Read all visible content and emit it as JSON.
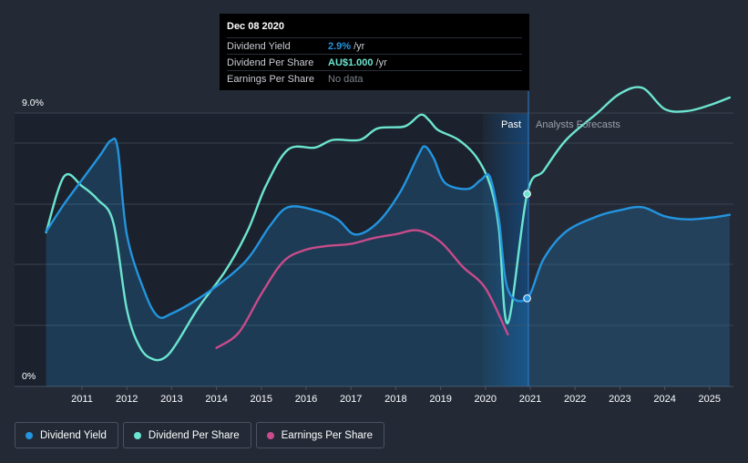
{
  "tooltip": {
    "date": "Dec 08 2020",
    "rows": [
      {
        "label": "Dividend Yield",
        "value": "2.9%",
        "unit": "/yr",
        "color": "#2394df"
      },
      {
        "label": "Dividend Per Share",
        "value": "AU$1.000",
        "unit": "/yr",
        "color": "#6ce5d0"
      },
      {
        "label": "Earnings Per Share",
        "value": "No data",
        "unit": "",
        "color": ""
      }
    ]
  },
  "regions": {
    "past": "Past",
    "forecast": "Analysts Forecasts"
  },
  "legend": [
    {
      "label": "Dividend Yield",
      "color": "#2394df"
    },
    {
      "label": "Dividend Per Share",
      "color": "#6ce5d0"
    },
    {
      "label": "Earnings Per Share",
      "color": "#c94b8b"
    }
  ],
  "chart_data": {
    "type": "line",
    "ylim": [
      0,
      9
    ],
    "yticks": [
      "0%",
      "9.0%"
    ],
    "xticks": [
      "2011",
      "2012",
      "2013",
      "2014",
      "2015",
      "2016",
      "2017",
      "2018",
      "2019",
      "2020",
      "2021",
      "2022",
      "2023",
      "2024",
      "2025"
    ],
    "past_end": 2020.93,
    "series": [
      {
        "name": "Dividend Yield",
        "color": "#2394df",
        "unit": "%",
        "x": [
          2010.2,
          2010.6,
          2011.0,
          2011.4,
          2011.65,
          2011.8,
          2012.0,
          2012.4,
          2012.7,
          2013.0,
          2013.5,
          2014.0,
          2014.5,
          2014.8,
          2015.2,
          2015.6,
          2016.2,
          2016.7,
          2017.1,
          2017.6,
          2018.1,
          2018.5,
          2018.65,
          2018.85,
          2019.1,
          2019.6,
          2019.9,
          2020.1,
          2020.3,
          2020.5,
          2020.93,
          2021.3,
          2021.8,
          2022.5,
          2023.0,
          2023.5,
          2024.0,
          2024.5,
          2025.0,
          2025.45
        ],
        "values": [
          5.1,
          6.0,
          6.8,
          7.6,
          8.1,
          7.8,
          5.0,
          3.1,
          2.3,
          2.4,
          2.8,
          3.3,
          3.9,
          4.4,
          5.3,
          5.9,
          5.8,
          5.5,
          5.0,
          5.4,
          6.4,
          7.6,
          7.9,
          7.5,
          6.7,
          6.5,
          6.8,
          6.9,
          5.5,
          3.2,
          2.9,
          4.2,
          5.1,
          5.6,
          5.8,
          5.9,
          5.6,
          5.5,
          5.55,
          5.65
        ]
      },
      {
        "name": "Dividend Per Share",
        "color": "#6ce5d0",
        "unit": "AU$",
        "x": [
          2010.2,
          2010.6,
          2011.0,
          2011.35,
          2011.7,
          2012.0,
          2012.3,
          2012.6,
          2012.85,
          2013.1,
          2013.6,
          2014.2,
          2014.7,
          2015.1,
          2015.6,
          2016.2,
          2016.6,
          2017.2,
          2017.6,
          2018.2,
          2018.55,
          2018.75,
          2018.95,
          2019.4,
          2019.8,
          2020.1,
          2020.3,
          2020.5,
          2020.93,
          2021.3,
          2021.8,
          2022.5,
          2023.0,
          2023.5,
          2024.0,
          2024.5,
          2025.0,
          2025.45
        ],
        "values": [
          0.8,
          1.09,
          1.04,
          0.97,
          0.85,
          0.4,
          0.2,
          0.14,
          0.15,
          0.22,
          0.41,
          0.6,
          0.81,
          1.04,
          1.23,
          1.24,
          1.28,
          1.28,
          1.34,
          1.35,
          1.41,
          1.38,
          1.33,
          1.28,
          1.19,
          1.05,
          0.82,
          0.33,
          1.0,
          1.12,
          1.28,
          1.42,
          1.52,
          1.55,
          1.44,
          1.43,
          1.46,
          1.5
        ]
      },
      {
        "name": "Earnings Per Share",
        "color": "#c94b8b",
        "unit": "AU$",
        "x": [
          2014.0,
          2014.5,
          2015.0,
          2015.5,
          2016.0,
          2016.5,
          2017.0,
          2017.5,
          2018.0,
          2018.5,
          2019.0,
          2019.5,
          2020.0,
          2020.5
        ],
        "values": [
          0.2,
          0.28,
          0.48,
          0.65,
          0.71,
          0.73,
          0.74,
          0.77,
          0.79,
          0.81,
          0.75,
          0.62,
          0.51,
          0.27
        ]
      }
    ]
  }
}
